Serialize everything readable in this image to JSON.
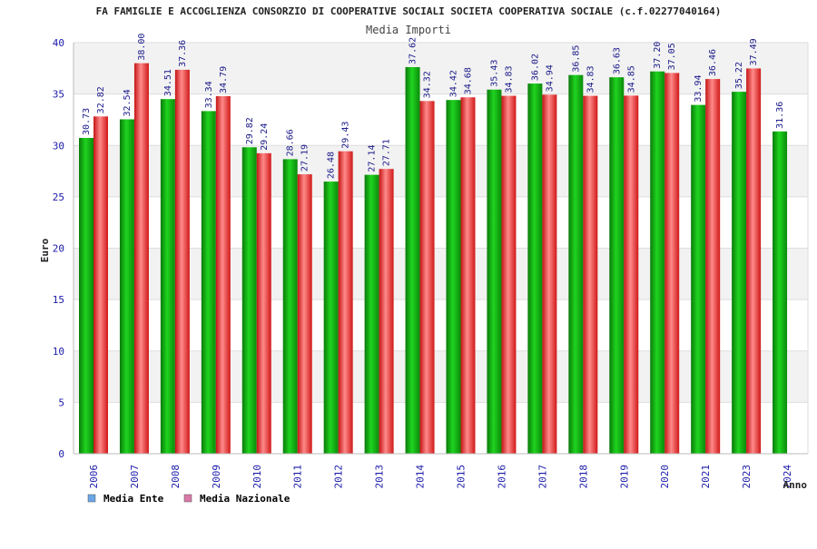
{
  "chart_data": {
    "type": "bar",
    "title": "FA FAMIGLIE E ACCOGLIENZA CONSORZIO DI COOPERATIVE SOCIALI SOCIETA COOPERATIVA SOCIALE (c.f.02277040164)",
    "subtitle": "Media Importi",
    "xlabel": "Anno",
    "ylabel": "Euro",
    "ylim": [
      0,
      40
    ],
    "yticks": [
      0,
      5,
      10,
      15,
      20,
      25,
      30,
      35,
      40
    ],
    "grid": true,
    "legend_position": "bottom-left",
    "categories": [
      "2006",
      "2007",
      "2008",
      "2009",
      "2010",
      "2011",
      "2012",
      "2013",
      "2014",
      "2015",
      "2016",
      "2017",
      "2018",
      "2019",
      "2020",
      "2021",
      "2023",
      "2024"
    ],
    "series": [
      {
        "name": "Media Ente",
        "legend_color": "#6aa6e8",
        "bar_color": "#10b010",
        "values": [
          30.73,
          32.54,
          34.51,
          33.34,
          29.82,
          28.66,
          26.48,
          27.14,
          37.62,
          34.42,
          35.43,
          36.02,
          36.85,
          36.63,
          37.2,
          33.94,
          35.22,
          31.36
        ],
        "labels": [
          "30.73",
          "32.54",
          "34.51",
          "33.34",
          "29.82",
          "28.66",
          "26.48",
          "27.14",
          "37.62",
          "34.42",
          "35.43",
          "36.02",
          "36.85",
          "36.63",
          "37.20",
          "33.94",
          "35.22",
          "31.36"
        ]
      },
      {
        "name": "Media Nazionale",
        "legend_color": "#d97aa8",
        "bar_color": "#ee2a2a",
        "values": [
          32.82,
          38.0,
          37.36,
          34.79,
          29.24,
          27.19,
          29.43,
          27.71,
          34.32,
          34.68,
          34.83,
          34.94,
          34.83,
          34.85,
          37.05,
          36.46,
          37.49,
          null
        ],
        "labels": [
          "32.82",
          "38.00",
          "37.36",
          "34.79",
          "29.24",
          "27.19",
          "29.43",
          "27.71",
          "34.32",
          "34.68",
          "34.83",
          "34.94",
          "34.83",
          "34.85",
          "37.05",
          "36.46",
          "37.49",
          null
        ]
      }
    ]
  }
}
